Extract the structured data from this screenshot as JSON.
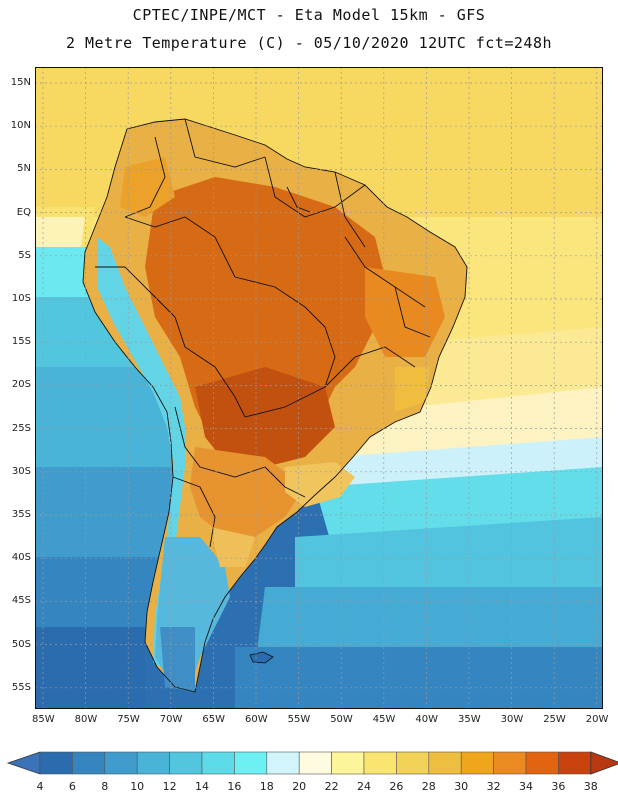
{
  "header": {
    "line1": "CPTEC/INPE/MCT -  Eta Model 15km - GFS",
    "line2": "2 Metre Temperature (C) - 05/10/2020 12UTC fct=248h"
  },
  "map": {
    "lat_labels": [
      "15N",
      "10N",
      "5N",
      "EQ",
      "5S",
      "10S",
      "15S",
      "20S",
      "25S",
      "30S",
      "35S",
      "40S",
      "45S",
      "50S",
      "55S"
    ],
    "lon_labels": [
      "85W",
      "80W",
      "75W",
      "70W",
      "65W",
      "60W",
      "55W",
      "50W",
      "45W",
      "40W",
      "35W",
      "30W",
      "25W",
      "20W"
    ]
  },
  "colorbar": {
    "ticks": [
      "4",
      "6",
      "8",
      "10",
      "12",
      "14",
      "16",
      "18",
      "20",
      "22",
      "24",
      "26",
      "28",
      "30",
      "32",
      "34",
      "36",
      "38"
    ],
    "colors": [
      "#2a6cae",
      "#3585c0",
      "#3f9ccc",
      "#49b3d8",
      "#52c6df",
      "#5edbe8",
      "#6cf0f4",
      "#d2f5fb",
      "#fffbe0",
      "#fdf59a",
      "#f9e56f",
      "#f3d258",
      "#edbe3f",
      "#efa51c",
      "#ea8a20",
      "#e26410",
      "#c8420e"
    ],
    "left_arrow_color": "#3a73b8",
    "right_arrow_color": "#b83812"
  }
}
